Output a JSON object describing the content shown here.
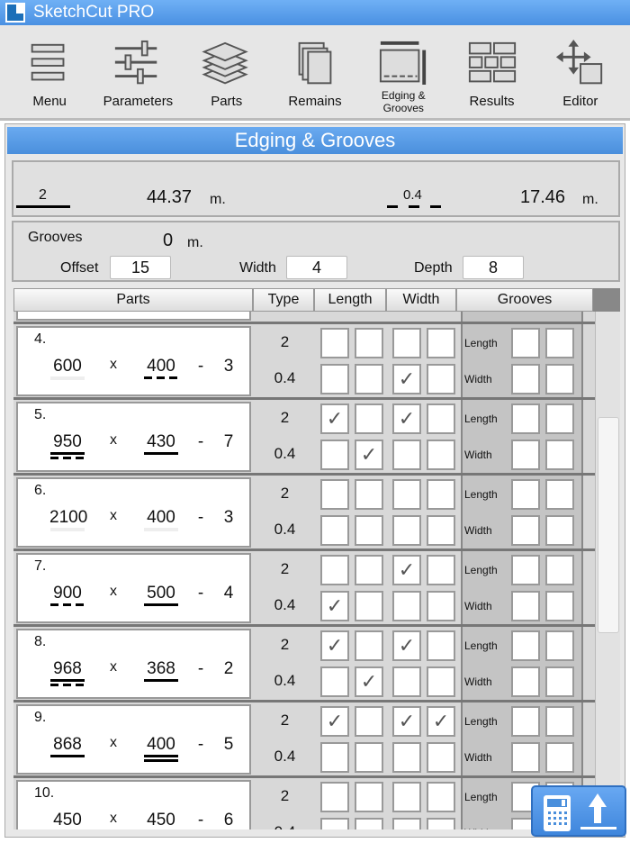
{
  "app": {
    "title": "SketchCut PRO"
  },
  "toolbar": [
    {
      "label": "Menu",
      "icon": "menu-icon"
    },
    {
      "label": "Parameters",
      "icon": "sliders-icon"
    },
    {
      "label": "Parts",
      "icon": "layers-icon"
    },
    {
      "label": "Remains",
      "icon": "sheets-icon"
    },
    {
      "label": "Edging & Grooves",
      "icon": "edging-icon"
    },
    {
      "label": "Results",
      "icon": "grid-icon"
    },
    {
      "label": "Editor",
      "icon": "move-icon"
    }
  ],
  "section_title": "Edging & Grooves",
  "edging": {
    "a_thickness": "2",
    "a_total": "44.37",
    "b_thickness": "0.4",
    "b_total": "17.46",
    "unit": "m."
  },
  "grooves": {
    "label": "Grooves",
    "total": "0",
    "unit": "m.",
    "offset_label": "Offset",
    "offset": "15",
    "width_label": "Width",
    "width": "4",
    "depth_label": "Depth",
    "depth": "8"
  },
  "table": {
    "headers": [
      "Parts",
      "Type",
      "Length",
      "Width",
      "Grooves"
    ],
    "type_labels": [
      "2",
      "0.4"
    ],
    "groove_labels": [
      "Length",
      "Width"
    ],
    "rows": [
      {
        "n": "4.",
        "l": "600",
        "w": "400",
        "q": "3",
        "lu": "none",
        "wu": "dashed",
        "t2": [
          false,
          false,
          false,
          false
        ],
        "t04": [
          false,
          false,
          true,
          false
        ]
      },
      {
        "n": "5.",
        "l": "950",
        "w": "430",
        "q": "7",
        "lu": "solid-dashed",
        "wu": "solid",
        "t2": [
          true,
          false,
          true,
          false
        ],
        "t04": [
          false,
          true,
          false,
          false
        ]
      },
      {
        "n": "6.",
        "l": "2100",
        "w": "400",
        "q": "3",
        "lu": "none",
        "wu": "none",
        "t2": [
          false,
          false,
          false,
          false
        ],
        "t04": [
          false,
          false,
          false,
          false
        ]
      },
      {
        "n": "7.",
        "l": "900",
        "w": "500",
        "q": "4",
        "lu": "dashed",
        "wu": "solid",
        "t2": [
          false,
          false,
          true,
          false
        ],
        "t04": [
          true,
          false,
          false,
          false
        ]
      },
      {
        "n": "8.",
        "l": "968",
        "w": "368",
        "q": "2",
        "lu": "solid-dashed",
        "wu": "solid",
        "t2": [
          true,
          false,
          true,
          false
        ],
        "t04": [
          false,
          true,
          false,
          false
        ]
      },
      {
        "n": "9.",
        "l": "868",
        "w": "400",
        "q": "5",
        "lu": "solid",
        "wu": "double",
        "t2": [
          true,
          false,
          true,
          true
        ],
        "t04": [
          false,
          false,
          false,
          false
        ]
      },
      {
        "n": "10.",
        "l": "450",
        "w": "450",
        "q": "6",
        "lu": "none",
        "wu": "none",
        "t2": [
          false,
          false,
          false,
          false
        ],
        "t04": [
          false,
          false,
          false,
          false
        ]
      }
    ],
    "sep": "x",
    "dash": "-"
  },
  "scroll_position": 0.35,
  "colors": {
    "accent": "#4a90e2"
  }
}
